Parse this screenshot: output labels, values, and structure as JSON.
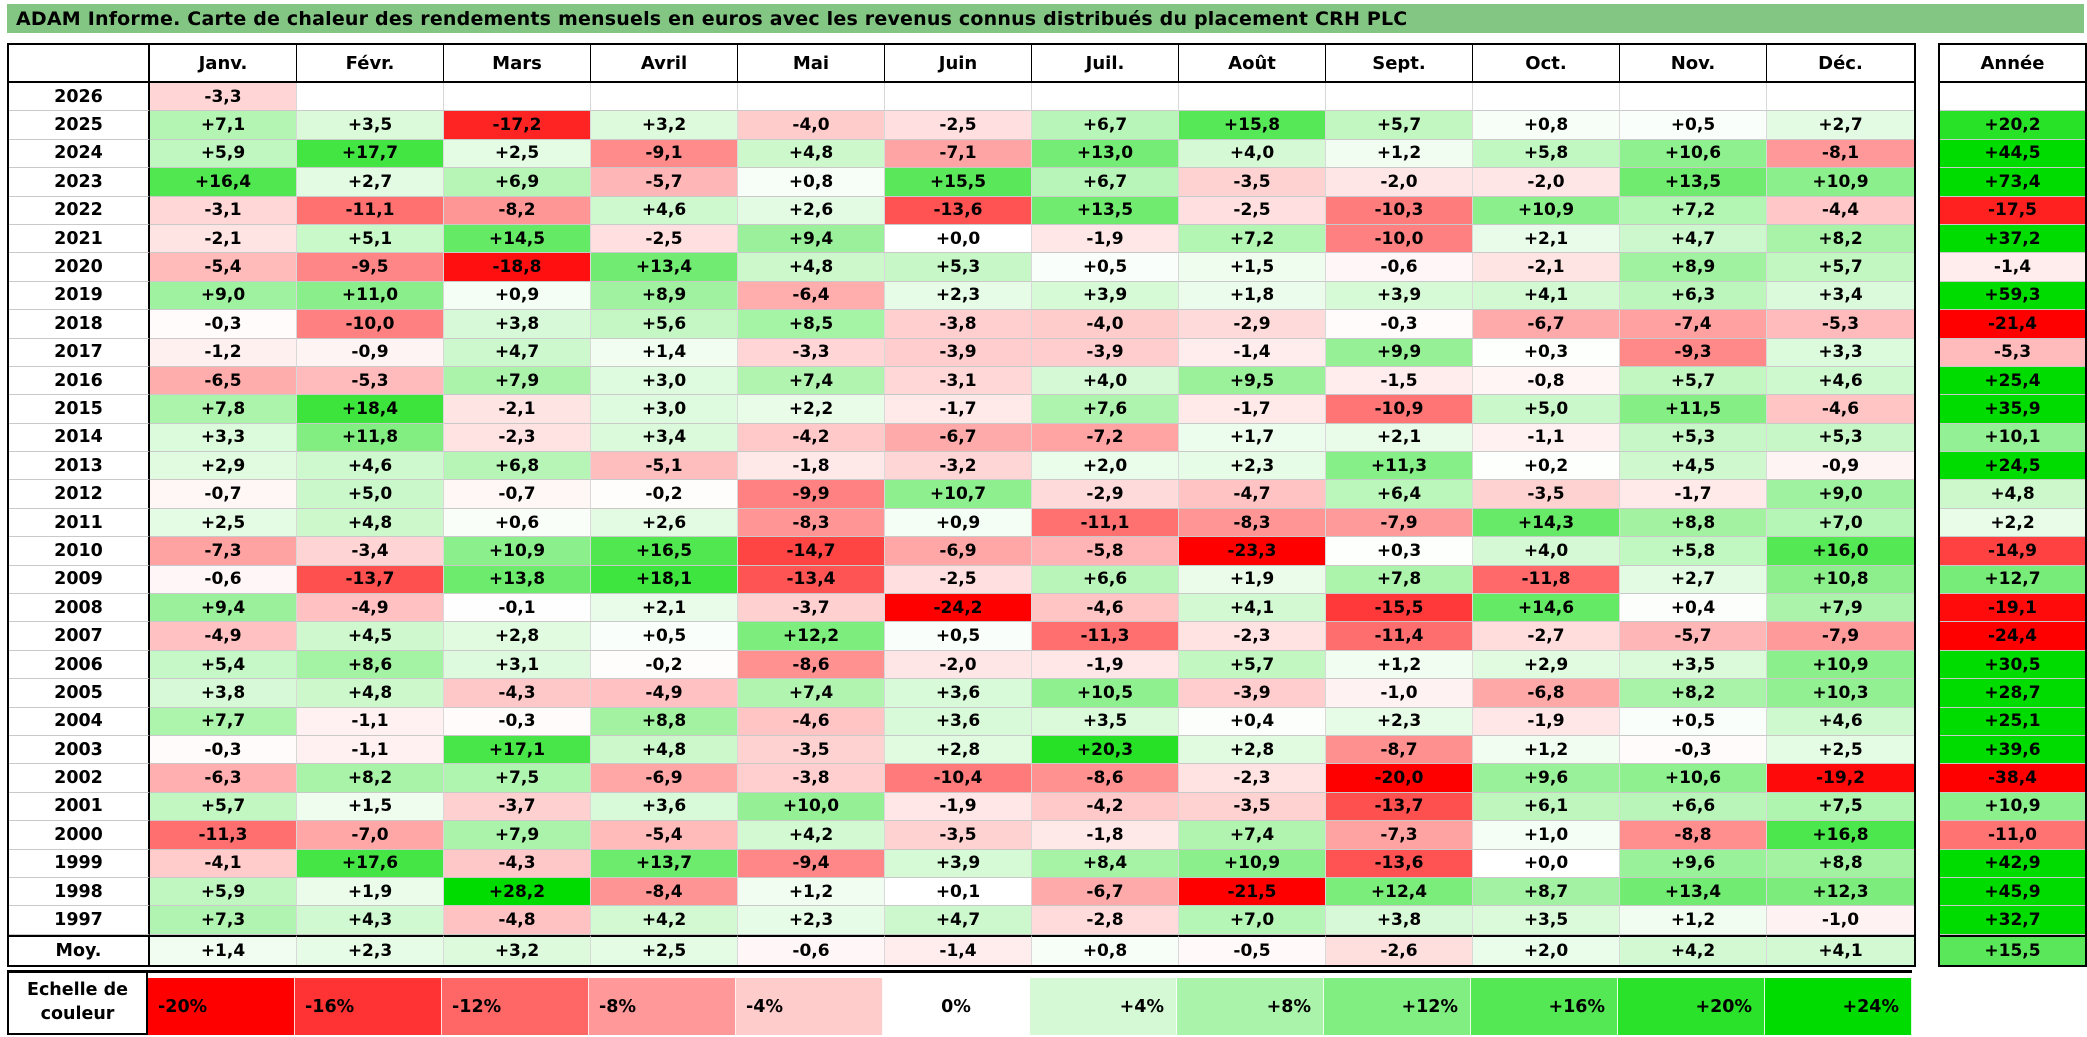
{
  "colors": {
    "title_bg": "#83C683",
    "grid_line": "#d8d8d8",
    "border": "#000000"
  },
  "chart_data": {
    "type": "heatmap",
    "title": "ADAM Informe. Carte de chaleur des rendements mensuels en euros avec les revenus connus distribués du placement CRH PLC",
    "columns": [
      "Janv.",
      "Févr.",
      "Mars",
      "Avril",
      "Mai",
      "Juin",
      "Juil.",
      "Août",
      "Sept.",
      "Oct.",
      "Nov.",
      "Déc."
    ],
    "annual_column_header": "Année",
    "rows": [
      {
        "year": "2026",
        "values": [
          "-3,3",
          "",
          "",
          "",
          "",
          "",
          "",
          "",
          "",
          "",
          "",
          ""
        ],
        "annual": ""
      },
      {
        "year": "2025",
        "values": [
          "+7,1",
          "+3,5",
          "-17,2",
          "+3,2",
          "-4,0",
          "-2,5",
          "+6,7",
          "+15,8",
          "+5,7",
          "+0,8",
          "+0,5",
          "+2,7"
        ],
        "annual": "+20,2"
      },
      {
        "year": "2024",
        "values": [
          "+5,9",
          "+17,7",
          "+2,5",
          "-9,1",
          "+4,8",
          "-7,1",
          "+13,0",
          "+4,0",
          "+1,2",
          "+5,8",
          "+10,6",
          "-8,1"
        ],
        "annual": "+44,5"
      },
      {
        "year": "2023",
        "values": [
          "+16,4",
          "+2,7",
          "+6,9",
          "-5,7",
          "+0,8",
          "+15,5",
          "+6,7",
          "-3,5",
          "-2,0",
          "-2,0",
          "+13,5",
          "+10,9"
        ],
        "annual": "+73,4"
      },
      {
        "year": "2022",
        "values": [
          "-3,1",
          "-11,1",
          "-8,2",
          "+4,6",
          "+2,6",
          "-13,6",
          "+13,5",
          "-2,5",
          "-10,3",
          "+10,9",
          "+7,2",
          "-4,4"
        ],
        "annual": "-17,5"
      },
      {
        "year": "2021",
        "values": [
          "-2,1",
          "+5,1",
          "+14,5",
          "-2,5",
          "+9,4",
          "+0,0",
          "-1,9",
          "+7,2",
          "-10,0",
          "+2,1",
          "+4,7",
          "+8,2"
        ],
        "annual": "+37,2"
      },
      {
        "year": "2020",
        "values": [
          "-5,4",
          "-9,5",
          "-18,8",
          "+13,4",
          "+4,8",
          "+5,3",
          "+0,5",
          "+1,5",
          "-0,6",
          "-2,1",
          "+8,9",
          "+5,7"
        ],
        "annual": "-1,4"
      },
      {
        "year": "2019",
        "values": [
          "+9,0",
          "+11,0",
          "+0,9",
          "+8,9",
          "-6,4",
          "+2,3",
          "+3,9",
          "+1,8",
          "+3,9",
          "+4,1",
          "+6,3",
          "+3,4"
        ],
        "annual": "+59,3"
      },
      {
        "year": "2018",
        "values": [
          "-0,3",
          "-10,0",
          "+3,8",
          "+5,6",
          "+8,5",
          "-3,8",
          "-4,0",
          "-2,9",
          "-0,3",
          "-6,7",
          "-7,4",
          "-5,3"
        ],
        "annual": "-21,4"
      },
      {
        "year": "2017",
        "values": [
          "-1,2",
          "-0,9",
          "+4,7",
          "+1,4",
          "-3,3",
          "-3,9",
          "-3,9",
          "-1,4",
          "+9,9",
          "+0,3",
          "-9,3",
          "+3,3"
        ],
        "annual": "-5,3"
      },
      {
        "year": "2016",
        "values": [
          "-6,5",
          "-5,3",
          "+7,9",
          "+3,0",
          "+7,4",
          "-3,1",
          "+4,0",
          "+9,5",
          "-1,5",
          "-0,8",
          "+5,7",
          "+4,6"
        ],
        "annual": "+25,4"
      },
      {
        "year": "2015",
        "values": [
          "+7,8",
          "+18,4",
          "-2,1",
          "+3,0",
          "+2,2",
          "-1,7",
          "+7,6",
          "-1,7",
          "-10,9",
          "+5,0",
          "+11,5",
          "-4,6"
        ],
        "annual": "+35,9"
      },
      {
        "year": "2014",
        "values": [
          "+3,3",
          "+11,8",
          "-2,3",
          "+3,4",
          "-4,2",
          "-6,7",
          "-7,2",
          "+1,7",
          "+2,1",
          "-1,1",
          "+5,3",
          "+5,3"
        ],
        "annual": "+10,1"
      },
      {
        "year": "2013",
        "values": [
          "+2,9",
          "+4,6",
          "+6,8",
          "-5,1",
          "-1,8",
          "-3,2",
          "+2,0",
          "+2,3",
          "+11,3",
          "+0,2",
          "+4,5",
          "-0,9"
        ],
        "annual": "+24,5"
      },
      {
        "year": "2012",
        "values": [
          "-0,7",
          "+5,0",
          "-0,7",
          "-0,2",
          "-9,9",
          "+10,7",
          "-2,9",
          "-4,7",
          "+6,4",
          "-3,5",
          "-1,7",
          "+9,0"
        ],
        "annual": "+4,8"
      },
      {
        "year": "2011",
        "values": [
          "+2,5",
          "+4,8",
          "+0,6",
          "+2,6",
          "-8,3",
          "+0,9",
          "-11,1",
          "-8,3",
          "-7,9",
          "+14,3",
          "+8,8",
          "+7,0"
        ],
        "annual": "+2,2"
      },
      {
        "year": "2010",
        "values": [
          "-7,3",
          "-3,4",
          "+10,9",
          "+16,5",
          "-14,7",
          "-6,9",
          "-5,8",
          "-23,3",
          "+0,3",
          "+4,0",
          "+5,8",
          "+16,0"
        ],
        "annual": "-14,9"
      },
      {
        "year": "2009",
        "values": [
          "-0,6",
          "-13,7",
          "+13,8",
          "+18,1",
          "-13,4",
          "-2,5",
          "+6,6",
          "+1,9",
          "+7,8",
          "-11,8",
          "+2,7",
          "+10,8"
        ],
        "annual": "+12,7"
      },
      {
        "year": "2008",
        "values": [
          "+9,4",
          "-4,9",
          "-0,1",
          "+2,1",
          "-3,7",
          "-24,2",
          "-4,6",
          "+4,1",
          "-15,5",
          "+14,6",
          "+0,4",
          "+7,9"
        ],
        "annual": "-19,1"
      },
      {
        "year": "2007",
        "values": [
          "-4,9",
          "+4,5",
          "+2,8",
          "+0,5",
          "+12,2",
          "+0,5",
          "-11,3",
          "-2,3",
          "-11,4",
          "-2,7",
          "-5,7",
          "-7,9"
        ],
        "annual": "-24,4"
      },
      {
        "year": "2006",
        "values": [
          "+5,4",
          "+8,6",
          "+3,1",
          "-0,2",
          "-8,6",
          "-2,0",
          "-1,9",
          "+5,7",
          "+1,2",
          "+2,9",
          "+3,5",
          "+10,9"
        ],
        "annual": "+30,5"
      },
      {
        "year": "2005",
        "values": [
          "+3,8",
          "+4,8",
          "-4,3",
          "-4,9",
          "+7,4",
          "+3,6",
          "+10,5",
          "-3,9",
          "-1,0",
          "-6,8",
          "+8,2",
          "+10,3"
        ],
        "annual": "+28,7"
      },
      {
        "year": "2004",
        "values": [
          "+7,7",
          "-1,1",
          "-0,3",
          "+8,8",
          "-4,6",
          "+3,6",
          "+3,5",
          "+0,4",
          "+2,3",
          "-1,9",
          "+0,5",
          "+4,6"
        ],
        "annual": "+25,1"
      },
      {
        "year": "2003",
        "values": [
          "-0,3",
          "-1,1",
          "+17,1",
          "+4,8",
          "-3,5",
          "+2,8",
          "+20,3",
          "+2,8",
          "-8,7",
          "+1,2",
          "-0,3",
          "+2,5"
        ],
        "annual": "+39,6"
      },
      {
        "year": "2002",
        "values": [
          "-6,3",
          "+8,2",
          "+7,5",
          "-6,9",
          "-3,8",
          "-10,4",
          "-8,6",
          "-2,3",
          "-20,0",
          "+9,6",
          "+10,6",
          "-19,2"
        ],
        "annual": "-38,4"
      },
      {
        "year": "2001",
        "values": [
          "+5,7",
          "+1,5",
          "-3,7",
          "+3,6",
          "+10,0",
          "-1,9",
          "-4,2",
          "-3,5",
          "-13,7",
          "+6,1",
          "+6,6",
          "+7,5"
        ],
        "annual": "+10,9"
      },
      {
        "year": "2000",
        "values": [
          "-11,3",
          "-7,0",
          "+7,9",
          "-5,4",
          "+4,2",
          "-3,5",
          "-1,8",
          "+7,4",
          "-7,3",
          "+1,0",
          "-8,8",
          "+16,8"
        ],
        "annual": "-11,0"
      },
      {
        "year": "1999",
        "values": [
          "-4,1",
          "+17,6",
          "-4,3",
          "+13,7",
          "-9,4",
          "+3,9",
          "+8,4",
          "+10,9",
          "-13,6",
          "+0,0",
          "+9,6",
          "+8,8"
        ],
        "annual": "+42,9"
      },
      {
        "year": "1998",
        "values": [
          "+5,9",
          "+1,9",
          "+28,2",
          "-8,4",
          "+1,2",
          "+0,1",
          "-6,7",
          "-21,5",
          "+12,4",
          "+8,7",
          "+13,4",
          "+12,3"
        ],
        "annual": "+45,9"
      },
      {
        "year": "1997",
        "values": [
          "+7,3",
          "+4,3",
          "-4,8",
          "+4,2",
          "+2,3",
          "+4,7",
          "-2,8",
          "+7,0",
          "+3,8",
          "+3,5",
          "+1,2",
          "-1,0"
        ],
        "annual": "+32,7"
      }
    ],
    "average_row": {
      "label": "Moy.",
      "values": [
        "+1,4",
        "+2,3",
        "+3,2",
        "+2,5",
        "-0,6",
        "-1,4",
        "+0,8",
        "-0,5",
        "-2,6",
        "+2,0",
        "+4,2",
        "+4,1"
      ],
      "annual": "+15,5"
    },
    "color_scale": {
      "label": "Echelle de couleur",
      "steps": [
        "-20%",
        "-16%",
        "-12%",
        "-8%",
        "-4%",
        "0%",
        "+4%",
        "+8%",
        "+12%",
        "+16%",
        "+20%",
        "+24%"
      ],
      "negative_limit": -20,
      "positive_limit": 24,
      "negative_color": "#FF0000",
      "zero_color": "#FFFFFF",
      "positive_color": "#00DC00"
    }
  }
}
